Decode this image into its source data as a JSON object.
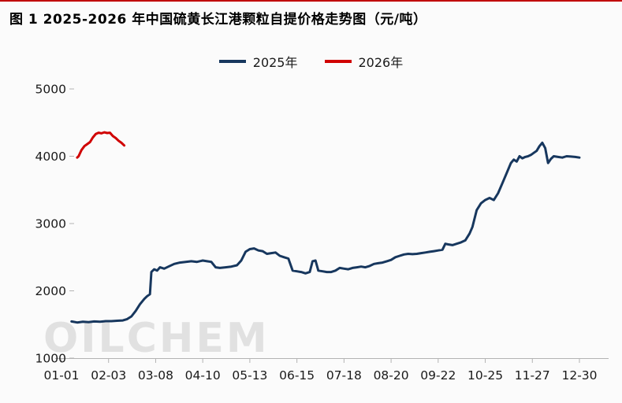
{
  "chart_data": {
    "type": "line",
    "title": "图 1 2025-2026 年中国硫黄长江港颗粒自提价格走势图（元/吨）",
    "unit": "元/吨",
    "watermark": "OILCHEM",
    "grid": false,
    "legend_position": "top-center",
    "x_tick_labels": [
      "01-01",
      "02-03",
      "03-08",
      "04-10",
      "05-13",
      "06-15",
      "07-18",
      "08-20",
      "09-22",
      "10-25",
      "11-27",
      "12-30"
    ],
    "x_tick_days": [
      1,
      34,
      67,
      100,
      133,
      166,
      199,
      232,
      265,
      298,
      331,
      364
    ],
    "x_range": [
      1,
      364
    ],
    "y_ticks": [
      1000,
      2000,
      3000,
      4000,
      5000
    ],
    "y_range": [
      1000,
      5000
    ],
    "ylabel": "元/吨",
    "series": [
      {
        "name": "2025年",
        "color": "#17375e",
        "points": [
          [
            8,
            1545
          ],
          [
            12,
            1530
          ],
          [
            16,
            1540
          ],
          [
            20,
            1535
          ],
          [
            24,
            1545
          ],
          [
            28,
            1540
          ],
          [
            32,
            1550
          ],
          [
            36,
            1550
          ],
          [
            40,
            1555
          ],
          [
            44,
            1560
          ],
          [
            47,
            1580
          ],
          [
            50,
            1620
          ],
          [
            53,
            1700
          ],
          [
            56,
            1800
          ],
          [
            59,
            1880
          ],
          [
            61,
            1920
          ],
          [
            63,
            1950
          ],
          [
            64,
            2280
          ],
          [
            66,
            2320
          ],
          [
            68,
            2300
          ],
          [
            70,
            2350
          ],
          [
            73,
            2330
          ],
          [
            76,
            2360
          ],
          [
            80,
            2400
          ],
          [
            84,
            2420
          ],
          [
            88,
            2430
          ],
          [
            92,
            2440
          ],
          [
            96,
            2430
          ],
          [
            100,
            2450
          ],
          [
            103,
            2440
          ],
          [
            106,
            2430
          ],
          [
            109,
            2350
          ],
          [
            112,
            2340
          ],
          [
            116,
            2350
          ],
          [
            120,
            2360
          ],
          [
            124,
            2380
          ],
          [
            127,
            2450
          ],
          [
            130,
            2580
          ],
          [
            133,
            2620
          ],
          [
            136,
            2630
          ],
          [
            139,
            2600
          ],
          [
            142,
            2590
          ],
          [
            145,
            2550
          ],
          [
            148,
            2560
          ],
          [
            151,
            2570
          ],
          [
            154,
            2520
          ],
          [
            157,
            2500
          ],
          [
            160,
            2480
          ],
          [
            163,
            2300
          ],
          [
            166,
            2290
          ],
          [
            169,
            2280
          ],
          [
            172,
            2260
          ],
          [
            175,
            2280
          ],
          [
            177,
            2440
          ],
          [
            179,
            2450
          ],
          [
            181,
            2300
          ],
          [
            184,
            2290
          ],
          [
            187,
            2280
          ],
          [
            190,
            2280
          ],
          [
            193,
            2300
          ],
          [
            196,
            2340
          ],
          [
            199,
            2330
          ],
          [
            202,
            2320
          ],
          [
            205,
            2340
          ],
          [
            208,
            2350
          ],
          [
            211,
            2360
          ],
          [
            214,
            2350
          ],
          [
            217,
            2370
          ],
          [
            220,
            2400
          ],
          [
            223,
            2410
          ],
          [
            226,
            2420
          ],
          [
            229,
            2440
          ],
          [
            232,
            2460
          ],
          [
            235,
            2500
          ],
          [
            238,
            2520
          ],
          [
            241,
            2540
          ],
          [
            244,
            2550
          ],
          [
            247,
            2545
          ],
          [
            250,
            2550
          ],
          [
            253,
            2560
          ],
          [
            256,
            2570
          ],
          [
            259,
            2580
          ],
          [
            262,
            2590
          ],
          [
            265,
            2600
          ],
          [
            268,
            2610
          ],
          [
            270,
            2700
          ],
          [
            272,
            2690
          ],
          [
            275,
            2680
          ],
          [
            278,
            2700
          ],
          [
            281,
            2720
          ],
          [
            284,
            2750
          ],
          [
            287,
            2850
          ],
          [
            289,
            2950
          ],
          [
            292,
            3200
          ],
          [
            295,
            3300
          ],
          [
            298,
            3350
          ],
          [
            301,
            3380
          ],
          [
            304,
            3350
          ],
          [
            307,
            3450
          ],
          [
            310,
            3600
          ],
          [
            313,
            3750
          ],
          [
            316,
            3900
          ],
          [
            318,
            3950
          ],
          [
            320,
            3920
          ],
          [
            322,
            4000
          ],
          [
            324,
            3970
          ],
          [
            326,
            3990
          ],
          [
            328,
            4000
          ],
          [
            330,
            4020
          ],
          [
            332,
            4050
          ],
          [
            334,
            4080
          ],
          [
            336,
            4150
          ],
          [
            338,
            4200
          ],
          [
            340,
            4120
          ],
          [
            342,
            3900
          ],
          [
            344,
            3960
          ],
          [
            346,
            4000
          ],
          [
            349,
            3990
          ],
          [
            352,
            3980
          ],
          [
            355,
            4000
          ],
          [
            358,
            3995
          ],
          [
            361,
            3990
          ],
          [
            364,
            3980
          ]
        ]
      },
      {
        "name": "2026年",
        "color": "#d00000",
        "points": [
          [
            12,
            3980
          ],
          [
            13,
            4000
          ],
          [
            15,
            4090
          ],
          [
            17,
            4150
          ],
          [
            19,
            4180
          ],
          [
            21,
            4210
          ],
          [
            23,
            4280
          ],
          [
            25,
            4330
          ],
          [
            27,
            4350
          ],
          [
            29,
            4340
          ],
          [
            31,
            4355
          ],
          [
            33,
            4345
          ],
          [
            35,
            4350
          ],
          [
            37,
            4300
          ],
          [
            39,
            4270
          ],
          [
            41,
            4230
          ],
          [
            43,
            4200
          ],
          [
            45,
            4160
          ]
        ]
      }
    ]
  }
}
